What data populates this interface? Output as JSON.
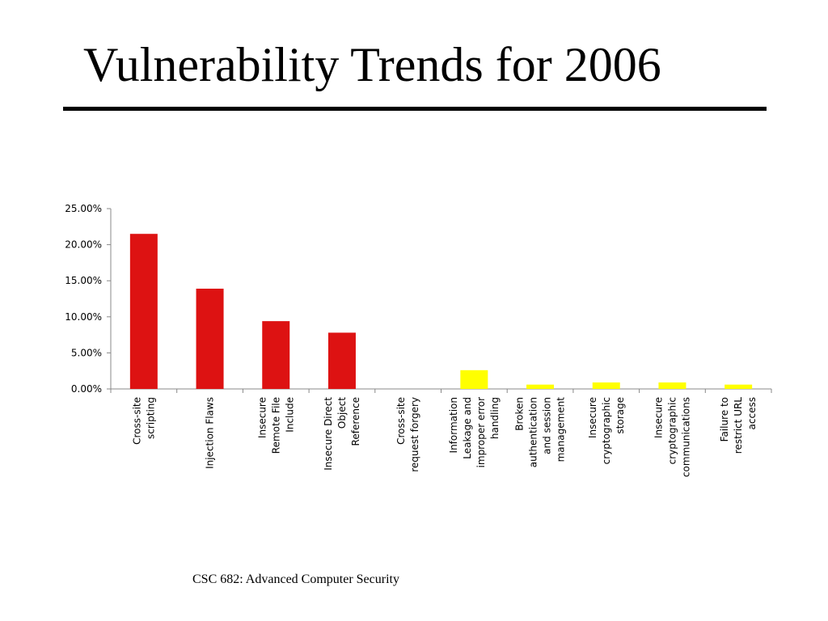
{
  "slide": {
    "title": "Vulnerability Trends for 2006",
    "footer": "CSC 682: Advanced Computer Security"
  },
  "colors": {
    "high": "#dd1212",
    "low": "#ffff00",
    "axis": "#888888",
    "text": "#000000"
  },
  "chart_data": {
    "type": "bar",
    "title": "",
    "xlabel": "",
    "ylabel": "",
    "ylim": [
      0,
      0.25
    ],
    "yticks": [
      "0.00%",
      "5.00%",
      "10.00%",
      "15.00%",
      "20.00%",
      "25.00%"
    ],
    "grid": false,
    "categories": [
      [
        "Cross-site",
        "scripting"
      ],
      [
        "Injection Flaws"
      ],
      [
        "Insecure",
        "Remote File",
        "Include"
      ],
      [
        "Insecure Direct",
        "Object",
        "Reference"
      ],
      [
        "Cross-site",
        "request forgery"
      ],
      [
        "Information",
        "Leakage and",
        "improper error",
        "handling"
      ],
      [
        "Broken",
        "authentication",
        "and session",
        "management"
      ],
      [
        "Insecure",
        "cryptographic",
        "storage"
      ],
      [
        "Insecure",
        "cryptographic",
        "communications"
      ],
      [
        "Failure to",
        "restrict URL",
        "access"
      ]
    ],
    "values": [
      0.215,
      0.139,
      0.094,
      0.078,
      0.0,
      0.026,
      0.006,
      0.009,
      0.009,
      0.006
    ],
    "bar_colors": [
      "#dd1212",
      "#dd1212",
      "#dd1212",
      "#dd1212",
      "#dd1212",
      "#ffff00",
      "#ffff00",
      "#ffff00",
      "#ffff00",
      "#ffff00"
    ]
  }
}
